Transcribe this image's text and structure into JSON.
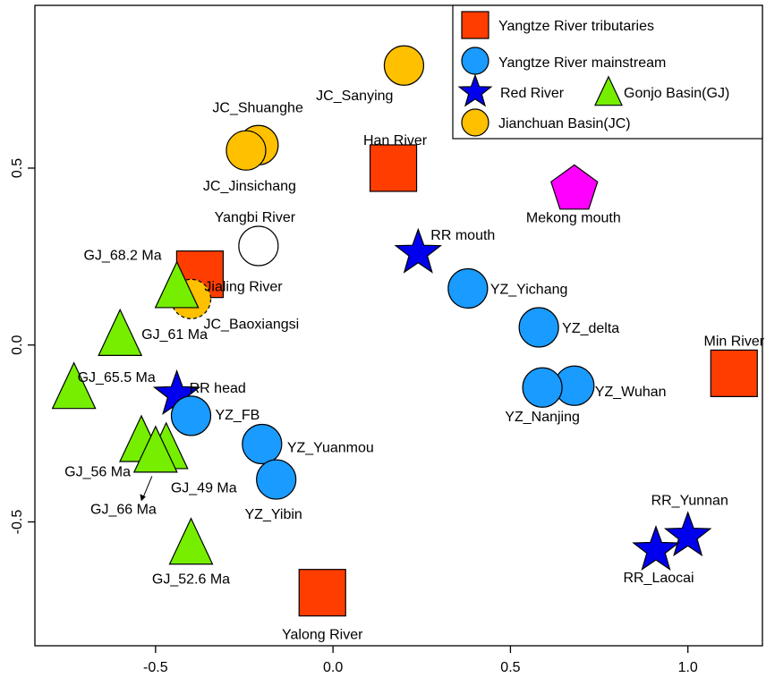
{
  "chart_data": {
    "type": "scatter",
    "title": "",
    "xlabel": "",
    "ylabel": "",
    "xlim": [
      -0.84,
      1.21
    ],
    "ylim": [
      -0.85,
      0.96
    ],
    "xticks": [
      -0.5,
      0.0,
      0.5,
      1.0
    ],
    "xtick_labels": [
      "-0.5",
      "0.0",
      "0.5",
      "1.0"
    ],
    "yticks": [
      -0.5,
      0.0,
      0.5
    ],
    "ytick_labels": [
      "-0.5",
      "0.0",
      "0.5"
    ],
    "grid": false,
    "legend_position": "top-right",
    "legend": [
      {
        "label": "Yangtze River tributaries",
        "marker": "square",
        "color": "#ff3d00"
      },
      {
        "label": "Yangtze River mainstream",
        "marker": "circle",
        "color": "#1a9bff"
      },
      {
        "label": "Red River",
        "marker": "star",
        "color": "#0000ee"
      },
      {
        "label": "Gonjo Basin(GJ)",
        "marker": "triangle",
        "color": "#76ee00"
      },
      {
        "label": "Jianchuan Basin(JC)",
        "marker": "circle",
        "color": "#ffc000"
      }
    ],
    "points": [
      {
        "x": 0.2,
        "y": 0.79,
        "marker": "circle",
        "color": "#ffc000",
        "label": "JC_Sanying",
        "dashed": false
      },
      {
        "x": -0.21,
        "y": 0.565,
        "marker": "circle",
        "color": "#ffc000",
        "label": "JC_Shuanghe",
        "dashed": false
      },
      {
        "x": -0.245,
        "y": 0.55,
        "marker": "circle",
        "color": "#ffc000",
        "label": "JC_Jinsichang",
        "dashed": false
      },
      {
        "x": 0.17,
        "y": 0.5,
        "marker": "square",
        "color": "#ff3d00",
        "label": "Han River",
        "dashed": false
      },
      {
        "x": 0.68,
        "y": 0.44,
        "marker": "pentagon",
        "color": "#ff00ff",
        "label": "Mekong mouth",
        "dashed": false
      },
      {
        "x": -0.21,
        "y": 0.28,
        "marker": "circle",
        "color": "#ffffff",
        "label": "Yangbi River",
        "dashed": false
      },
      {
        "x": 0.24,
        "y": 0.26,
        "marker": "star",
        "color": "#0000ee",
        "label": "RR mouth",
        "dashed": false
      },
      {
        "x": -0.375,
        "y": 0.2,
        "marker": "square",
        "color": "#ff3d00",
        "label": "Jialing River",
        "dashed": false
      },
      {
        "x": -0.4,
        "y": 0.13,
        "marker": "circle",
        "color": "#ffc000",
        "label": "JC_Baoxiangsi",
        "dashed": true
      },
      {
        "x": -0.44,
        "y": 0.165,
        "marker": "triangle",
        "color": "#76ee00",
        "label": "GJ_68.2 Ma",
        "dashed": false
      },
      {
        "x": 0.38,
        "y": 0.16,
        "marker": "circle",
        "color": "#1a9bff",
        "label": "YZ_Yichang",
        "dashed": false
      },
      {
        "x": -0.6,
        "y": 0.03,
        "marker": "triangle",
        "color": "#76ee00",
        "label": "GJ_61 Ma",
        "dashed": false
      },
      {
        "x": 0.58,
        "y": 0.05,
        "marker": "circle",
        "color": "#1a9bff",
        "label": "YZ_delta",
        "dashed": false
      },
      {
        "x": 1.13,
        "y": -0.08,
        "marker": "square",
        "color": "#ff3d00",
        "label": "Min River",
        "dashed": false
      },
      {
        "x": -0.73,
        "y": -0.12,
        "marker": "triangle",
        "color": "#76ee00",
        "label": "GJ_65.5 Ma",
        "dashed": false
      },
      {
        "x": 0.68,
        "y": -0.115,
        "marker": "circle",
        "color": "#1a9bff",
        "label": "YZ_Wuhan",
        "dashed": false
      },
      {
        "x": 0.59,
        "y": -0.12,
        "marker": "circle",
        "color": "#1a9bff",
        "label": "YZ_Nanjing",
        "dashed": false
      },
      {
        "x": -0.44,
        "y": -0.14,
        "marker": "star",
        "color": "#0000ee",
        "label": "RR head",
        "dashed": false
      },
      {
        "x": -0.4,
        "y": -0.2,
        "marker": "circle",
        "color": "#1a9bff",
        "label": "YZ_FB",
        "dashed": false
      },
      {
        "x": -0.2,
        "y": -0.28,
        "marker": "circle",
        "color": "#1a9bff",
        "label": "YZ_Yuanmou",
        "dashed": false
      },
      {
        "x": -0.54,
        "y": -0.27,
        "marker": "triangle",
        "color": "#76ee00",
        "label": "GJ_56 Ma",
        "dashed": false
      },
      {
        "x": -0.47,
        "y": -0.29,
        "marker": "triangle",
        "color": "#76ee00",
        "label": "GJ_49 Ma",
        "dashed": false
      },
      {
        "x": -0.5,
        "y": -0.3,
        "marker": "triangle",
        "color": "#76ee00",
        "label": "GJ_66 Ma",
        "dashed": false
      },
      {
        "x": -0.16,
        "y": -0.38,
        "marker": "circle",
        "color": "#1a9bff",
        "label": "YZ_Yibin",
        "dashed": false
      },
      {
        "x": 1.0,
        "y": -0.54,
        "marker": "star",
        "color": "#0000ee",
        "label": "RR_Yunnan",
        "dashed": false
      },
      {
        "x": 0.91,
        "y": -0.58,
        "marker": "star",
        "color": "#0000ee",
        "label": "RR_Laocai",
        "dashed": false
      },
      {
        "x": -0.4,
        "y": -0.56,
        "marker": "triangle",
        "color": "#76ee00",
        "label": "GJ_52.6 Ma",
        "dashed": false
      },
      {
        "x": -0.03,
        "y": -0.7,
        "marker": "square",
        "color": "#ff3d00",
        "label": "Yalong River",
        "dashed": false
      }
    ]
  }
}
